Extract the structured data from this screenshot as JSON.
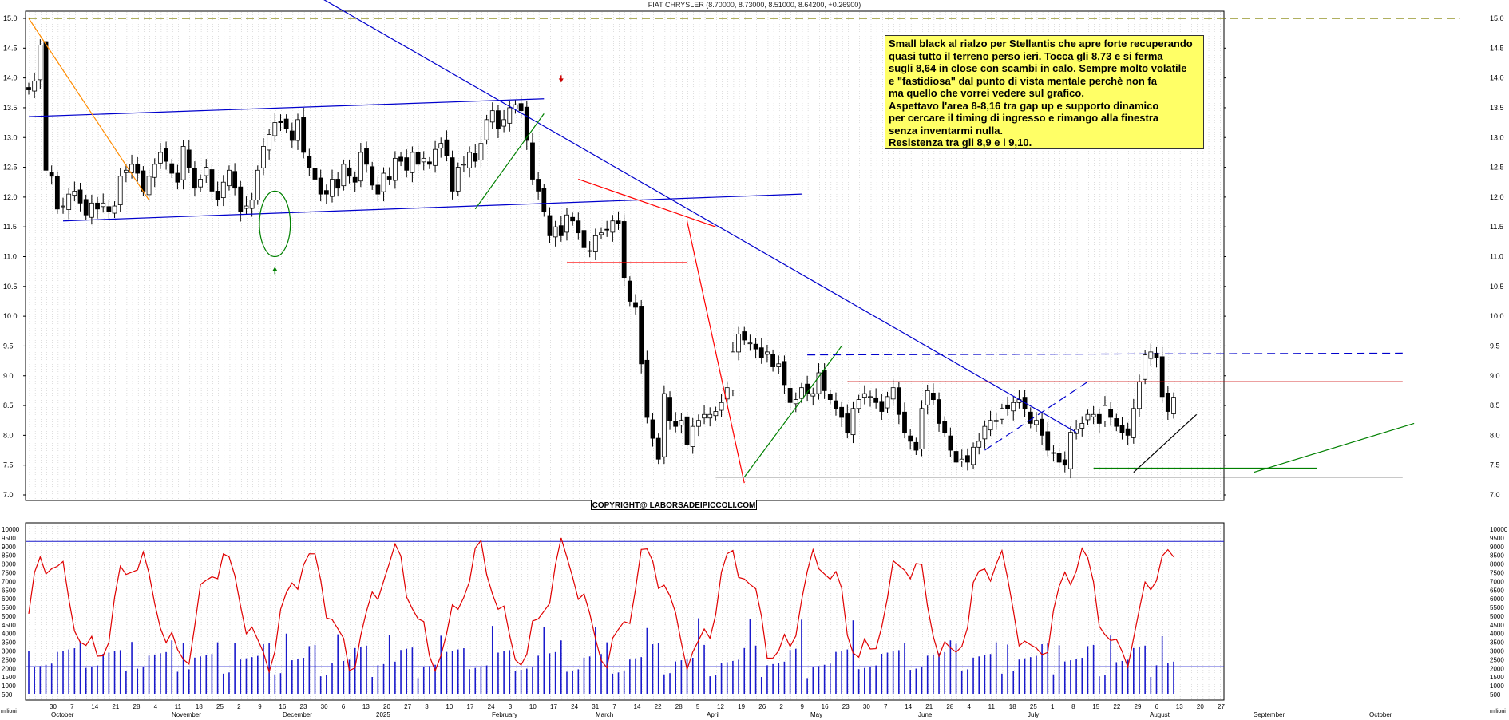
{
  "chart_data": {
    "type": "candlestick",
    "title": "FIAT CHRYSLER (8.70000, 8.73000, 8.51000, 8.64200, +0.26900)",
    "price_axis": {
      "ylim": [
        7.0,
        15.0
      ],
      "ticks": [
        "7.0",
        "7.5",
        "8.0",
        "8.5",
        "9.0",
        "9.5",
        "10.0",
        "10.5",
        "11.0",
        "11.5",
        "12.0",
        "12.5",
        "13.0",
        "13.5",
        "14.0",
        "14.5",
        "15.0"
      ]
    },
    "volume_axis": {
      "ylim": [
        500,
        10000
      ],
      "ticks": [
        "500",
        "1000",
        "1500",
        "2000",
        "2500",
        "3000",
        "3500",
        "4000",
        "4500",
        "5000",
        "5500",
        "6000",
        "6500",
        "7000",
        "7500",
        "8000",
        "8500",
        "9000",
        "9500",
        "10000"
      ]
    },
    "x_axis": {
      "month_labels": [
        "October",
        "November",
        "December",
        "2025",
        "February",
        "March",
        "April",
        "May",
        "June",
        "July",
        "August",
        "September",
        "October"
      ],
      "day_labels": [
        "30",
        "7",
        "14",
        "21",
        "28",
        "4",
        "11",
        "18",
        "25",
        "2",
        "9",
        "16",
        "23",
        "30",
        "6",
        "13",
        "20",
        "27",
        "3",
        "10",
        "17",
        "24",
        "3",
        "10",
        "17",
        "24",
        "31",
        "7",
        "14",
        "22",
        "28",
        "5",
        "12",
        "19",
        "26",
        "2",
        "9",
        "16",
        "23",
        "30",
        "7",
        "14",
        "21",
        "28",
        "4",
        "11",
        "18",
        "25",
        "1",
        "8",
        "15",
        "22",
        "29",
        "6",
        "13",
        "20",
        "27"
      ],
      "corner_label": "milioni"
    },
    "annotation_lines": [
      "Small black al rialzo per Stellantis che apre forte recuperando",
      "quasi tutto il terreno perso ieri. Tocca gli 8,73 e si ferma",
      "sugli 8,64 in close con scambi in calo. Sempre molto volatile",
      "e \"fastidiosa\" dal punto di vista mentale perchè non fa",
      "ma quello che vorrei vedere sul grafico.",
      "Aspettavo l'area 8-8,16 tra gap up e supporto dinamico",
      "per cercare il timing di ingresso e rimango alla finestra",
      "senza inventarmi nulla.",
      "Resistenza tra gli 8,9 e i 9,10."
    ],
    "copyright": "COPYRIGHT@ LABORSADEIPICCOLI.COM",
    "closes": [
      13.8,
      13.95,
      14.55,
      12.45,
      12.35,
      11.8,
      11.85,
      12.05,
      12.1,
      11.9,
      11.7,
      11.9,
      11.8,
      11.9,
      11.75,
      11.85,
      12.35,
      12.45,
      12.55,
      12.4,
      12.1,
      12.35,
      12.55,
      12.75,
      12.6,
      12.4,
      12.25,
      12.85,
      12.5,
      12.15,
      12.3,
      12.5,
      12.1,
      11.95,
      12.25,
      12.45,
      12.15,
      11.75,
      11.85,
      11.95,
      12.45,
      12.85,
      13.05,
      13.25,
      13.25,
      13.15,
      12.95,
      13.3,
      12.75,
      12.5,
      12.3,
      12.05,
      12.05,
      12.3,
      12.15,
      12.55,
      12.35,
      12.25,
      12.75,
      12.55,
      12.2,
      12.05,
      12.4,
      12.3,
      12.65,
      12.6,
      12.45,
      12.75,
      12.55,
      12.65,
      12.55,
      12.8,
      12.9,
      12.7,
      12.1,
      12.5,
      12.55,
      12.75,
      12.6,
      12.9,
      13.3,
      13.45,
      13.15,
      13.3,
      13.5,
      13.55,
      13.45,
      12.95,
      12.3,
      12.1,
      11.75,
      11.35,
      11.5,
      11.35,
      11.7,
      11.6,
      11.4,
      11.15,
      11.1,
      11.35,
      11.4,
      11.45,
      11.6,
      11.55,
      10.65,
      10.25,
      10.15,
      9.2,
      8.3,
      7.95,
      7.6,
      8.7,
      8.25,
      8.15,
      8.25,
      7.85,
      8.15,
      8.25,
      8.35,
      8.35,
      8.4,
      8.55,
      8.8,
      9.4,
      9.7,
      9.6,
      9.55,
      9.45,
      9.3,
      9.4,
      9.15,
      9.2,
      8.85,
      8.55,
      8.6,
      8.8,
      8.7,
      8.7,
      9.05,
      8.75,
      8.6,
      8.45,
      8.3,
      8.05,
      8.45,
      8.6,
      8.7,
      8.65,
      8.55,
      8.4,
      8.65,
      8.8,
      8.35,
      8.05,
      7.9,
      7.75,
      8.45,
      8.75,
      8.6,
      8.2,
      8.05,
      7.75,
      7.55,
      7.6,
      7.55,
      7.8,
      7.9,
      8.15,
      8.25,
      8.25,
      8.45,
      8.45,
      8.55,
      8.6,
      8.45,
      8.2,
      8.25,
      8.0,
      7.75,
      7.7,
      7.55,
      7.5,
      8.05,
      8.1,
      8.2,
      8.35,
      8.35,
      8.2,
      8.5,
      8.3,
      8.15,
      8.05,
      8.0,
      8.45,
      8.9,
      9.35,
      9.4,
      9.3,
      8.65,
      8.4,
      8.64
    ],
    "trendlines": [
      {
        "color": "#0000cc",
        "from": [
          0,
          13.35
        ],
        "to": [
          90,
          13.65
        ]
      },
      {
        "color": "#0000cc",
        "from": [
          6,
          11.6
        ],
        "to": [
          135,
          12.05
        ]
      },
      {
        "color": "#0000cc",
        "from": [
          50,
          15.4
        ],
        "to": [
          183,
          8.05
        ]
      },
      {
        "color": "#ff8c00",
        "from": [
          0,
          15.0
        ],
        "to": [
          21,
          11.95
        ]
      },
      {
        "color": "#ff0000",
        "from": [
          94,
          10.9
        ],
        "to": [
          115,
          10.9
        ]
      },
      {
        "color": "#ff0000",
        "from": [
          96,
          12.3
        ],
        "to": [
          120,
          11.5
        ]
      },
      {
        "color": "#ff0000",
        "from": [
          115,
          11.6
        ],
        "to": [
          125,
          7.2
        ]
      },
      {
        "color": "#008000",
        "from": [
          125,
          7.3
        ],
        "to": [
          142,
          9.5
        ]
      },
      {
        "color": "#008000",
        "from": [
          78,
          11.8
        ],
        "to": [
          90,
          13.4
        ]
      },
      {
        "color": "#0000cc",
        "dash": true,
        "from": [
          136,
          9.35
        ],
        "to": [
          240,
          9.38
        ]
      },
      {
        "color": "#cc0000",
        "from": [
          143,
          8.9
        ],
        "to": [
          240,
          8.9
        ]
      },
      {
        "color": "#222222",
        "from": [
          120,
          7.3
        ],
        "to": [
          240,
          7.3
        ]
      },
      {
        "color": "#0000cc",
        "dash": true,
        "from": [
          167,
          7.75
        ],
        "to": [
          185,
          8.9
        ]
      },
      {
        "color": "#008000",
        "from": [
          186,
          7.45
        ],
        "to": [
          225,
          7.45
        ]
      },
      {
        "color": "#008000",
        "from": [
          214,
          7.38
        ],
        "to": [
          242,
          8.2
        ]
      },
      {
        "color": "#000000",
        "from": [
          193,
          7.38
        ],
        "to": [
          204,
          8.35
        ]
      },
      {
        "color": "#808000",
        "dash": true,
        "from": [
          0,
          15.0
        ],
        "to": [
          250,
          15.0
        ]
      }
    ],
    "markers": [
      {
        "type": "ellipse",
        "color": "#008000",
        "cx": 43,
        "cy": 11.55,
        "rx": 2.7,
        "ry": 0.55
      },
      {
        "type": "arrow-up",
        "color": "#008000",
        "x": 43,
        "y": 10.8
      },
      {
        "type": "arrow-down",
        "color": "#cc0000",
        "x": 93,
        "y": 13.95
      }
    ]
  }
}
